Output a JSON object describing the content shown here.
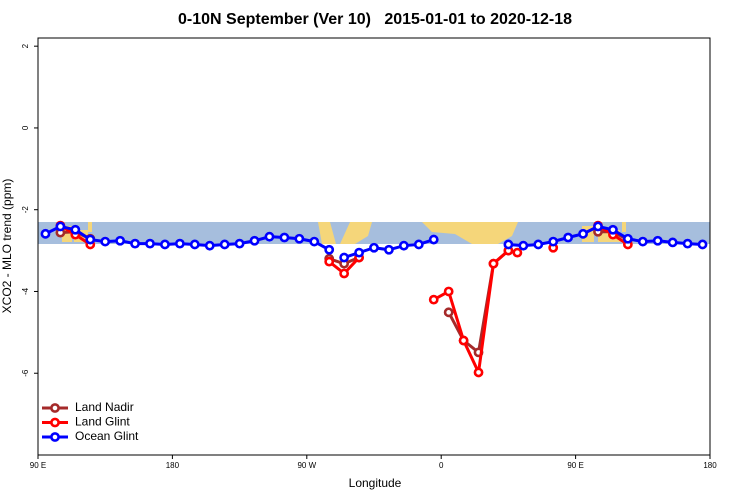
{
  "chart_data": {
    "type": "line",
    "title": "0-10N September (Ver 10)   2015-01-01 to 2020-12-18",
    "x_label": "Longitude",
    "y_label": "XCO2 - MLO trend (ppm)",
    "xlim": [
      90,
      540
    ],
    "xticks": [
      {
        "value": 90,
        "label": "90 E"
      },
      {
        "value": 180,
        "label": "180"
      },
      {
        "value": 270,
        "label": "90 W"
      },
      {
        "value": 360,
        "label": "0"
      },
      {
        "value": 450,
        "label": "90 E"
      },
      {
        "value": 540,
        "label": "180"
      }
    ],
    "ylim": [
      -8,
      2.2
    ],
    "yticks": [
      2,
      0,
      -2,
      -4,
      -6
    ],
    "legend": "bottom-left",
    "series": [
      {
        "name": "Land Nadir",
        "color": "#a52a2a",
        "x": [
          105,
          115,
          125,
          135,
          285,
          295,
          305,
          315,
          365,
          375,
          385,
          395,
          405,
          415,
          465,
          475,
          485
        ],
        "values": [
          -2.56,
          -2.54,
          -2.71,
          null,
          -3.2,
          -3.32,
          -3.17,
          null,
          -4.51,
          -5.2,
          -5.49,
          -3.32,
          -3.0,
          null,
          -2.54,
          -2.54,
          -2.73
        ]
      },
      {
        "name": "Land Glint",
        "color": "#ff0000",
        "x": [
          105,
          115,
          125,
          135,
          285,
          295,
          305,
          315,
          355,
          365,
          375,
          385,
          395,
          405,
          411,
          425,
          435,
          445,
          465,
          475,
          485
        ],
        "values": [
          -2.39,
          -2.61,
          -2.85,
          null,
          -3.27,
          -3.56,
          -3.17,
          null,
          -4.2,
          -4.0,
          -5.2,
          -5.98,
          -3.32,
          -3.0,
          -3.05,
          null,
          -2.93,
          null,
          -2.39,
          -2.61,
          -2.85
        ]
      },
      {
        "name": "Ocean Glint",
        "color": "#0000ff",
        "x": [
          95,
          105,
          115,
          125,
          135,
          145,
          155,
          165,
          175,
          185,
          195,
          205,
          215,
          225,
          235,
          245,
          255,
          265,
          275,
          285,
          290,
          295,
          305,
          315,
          325,
          335,
          345,
          355,
          365,
          385,
          405,
          415,
          425,
          435,
          445,
          455,
          465,
          475,
          485,
          495,
          505,
          515,
          525,
          535
        ],
        "values": [
          -2.59,
          -2.41,
          -2.49,
          -2.73,
          -2.78,
          -2.76,
          -2.83,
          -2.83,
          -2.85,
          -2.83,
          -2.85,
          -2.88,
          -2.85,
          -2.83,
          -2.76,
          -2.66,
          -2.68,
          -2.71,
          -2.78,
          -2.98,
          null,
          -3.17,
          -3.05,
          -2.93,
          -2.98,
          -2.88,
          -2.85,
          -2.73,
          null,
          null,
          -2.85,
          -2.88,
          -2.85,
          -2.78,
          -2.68,
          -2.59,
          -2.41,
          -2.49,
          -2.71,
          -2.78,
          -2.76,
          -2.8,
          -2.83,
          -2.85
        ]
      }
    ]
  }
}
